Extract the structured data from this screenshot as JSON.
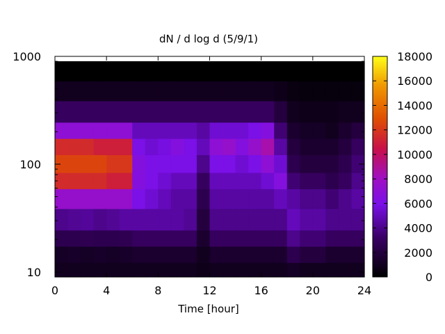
{
  "chart_data": {
    "type": "heatmap",
    "title": "dN / d log d (5/9/1)",
    "xlabel": "Time [hour]",
    "ylabel": "",
    "xlim": [
      0,
      24
    ],
    "x_ticks": [
      "0",
      "4",
      "8",
      "12",
      "16",
      "20",
      "24"
    ],
    "x_tick_values": [
      0,
      4,
      8,
      12,
      16,
      20,
      24
    ],
    "y_scale": "log",
    "ylim": [
      9,
      1000
    ],
    "y_ticks": [
      "10",
      "100",
      "1000"
    ],
    "y_tick_values": [
      10,
      100,
      1000
    ],
    "colorbar": {
      "range": [
        0,
        18000
      ],
      "ticks": [
        "0",
        "2000",
        "4000",
        "6000",
        "8000",
        "10000",
        "12000",
        "14000",
        "16000",
        "18000"
      ],
      "tick_values": [
        0,
        2000,
        4000,
        6000,
        8000,
        10000,
        12000,
        14000,
        16000,
        18000
      ],
      "colormap": "black-purple-red-orange-yellow"
    },
    "time_bins_hours": [
      0,
      1,
      2,
      3,
      4,
      5,
      6,
      7,
      8,
      9,
      10,
      11,
      12,
      13,
      14,
      15,
      16,
      17,
      18,
      19,
      20,
      21,
      22,
      23
    ],
    "diameter_bins": [
      10,
      15,
      20,
      30,
      50,
      70,
      100,
      150,
      200,
      300,
      500,
      700
    ],
    "values": [
      [
        1000,
        1200,
        2500,
        4000,
        7500,
        11500,
        12500,
        11500,
        7000,
        3000,
        1000,
        0
      ],
      [
        1000,
        1300,
        2500,
        4200,
        7500,
        11500,
        12500,
        11500,
        7000,
        3000,
        1000,
        0
      ],
      [
        1000,
        1200,
        2600,
        4300,
        7500,
        11500,
        12500,
        11500,
        7000,
        3000,
        1000,
        0
      ],
      [
        1000,
        1300,
        2500,
        4000,
        7500,
        11500,
        12500,
        11000,
        7000,
        3000,
        1000,
        0
      ],
      [
        1000,
        1200,
        2500,
        4200,
        7500,
        11000,
        12000,
        11000,
        7000,
        3000,
        1000,
        0
      ],
      [
        1000,
        1300,
        2600,
        4500,
        7500,
        11000,
        12000,
        11000,
        7000,
        3000,
        1000,
        0
      ],
      [
        1000,
        1500,
        3000,
        4500,
        6000,
        6500,
        6500,
        6000,
        5000,
        3000,
        1000,
        0
      ],
      [
        1000,
        1500,
        3000,
        4500,
        5500,
        6000,
        6000,
        5500,
        5000,
        3000,
        1000,
        0
      ],
      [
        1000,
        1500,
        3000,
        4500,
        5000,
        5500,
        6000,
        5800,
        5000,
        3000,
        1000,
        0
      ],
      [
        1000,
        1500,
        3000,
        4500,
        4500,
        5000,
        6000,
        6500,
        5000,
        3000,
        1000,
        0
      ],
      [
        1000,
        1500,
        3000,
        4200,
        4500,
        5000,
        6000,
        6000,
        5000,
        3000,
        1000,
        0
      ],
      [
        800,
        1000,
        1500,
        2000,
        2500,
        3000,
        4000,
        5000,
        4500,
        3000,
        1000,
        0
      ],
      [
        1000,
        1500,
        3000,
        4000,
        4500,
        5000,
        6000,
        7000,
        5500,
        3000,
        1000,
        0
      ],
      [
        1000,
        1500,
        3000,
        4000,
        4500,
        5000,
        6000,
        7500,
        5500,
        3000,
        1000,
        0
      ],
      [
        1000,
        1500,
        3000,
        4000,
        4500,
        5000,
        5500,
        6500,
        5500,
        3000,
        1000,
        0
      ],
      [
        1000,
        1500,
        3000,
        4000,
        4500,
        5000,
        6000,
        7500,
        6000,
        3000,
        1000,
        0
      ],
      [
        1000,
        1500,
        3000,
        4000,
        4500,
        5500,
        7000,
        8500,
        6500,
        3000,
        1000,
        0
      ],
      [
        1000,
        1500,
        3000,
        4000,
        5000,
        6500,
        5500,
        4500,
        3500,
        2000,
        800,
        0
      ],
      [
        1200,
        2500,
        4000,
        5000,
        4500,
        3500,
        2500,
        2000,
        1500,
        1000,
        500,
        0
      ],
      [
        1000,
        2000,
        3500,
        4500,
        4000,
        3000,
        2000,
        1500,
        1200,
        800,
        400,
        0
      ],
      [
        1000,
        2000,
        3500,
        4500,
        4000,
        3000,
        2000,
        1500,
        1200,
        800,
        400,
        0
      ],
      [
        1000,
        1500,
        3000,
        4000,
        3500,
        2500,
        2000,
        1500,
        1000,
        800,
        400,
        0
      ],
      [
        1000,
        1500,
        3000,
        4000,
        4000,
        3000,
        2500,
        2000,
        1500,
        1000,
        400,
        0
      ],
      [
        1000,
        1500,
        3000,
        4000,
        4500,
        4000,
        3500,
        3000,
        2000,
        1000,
        400,
        0
      ]
    ]
  }
}
